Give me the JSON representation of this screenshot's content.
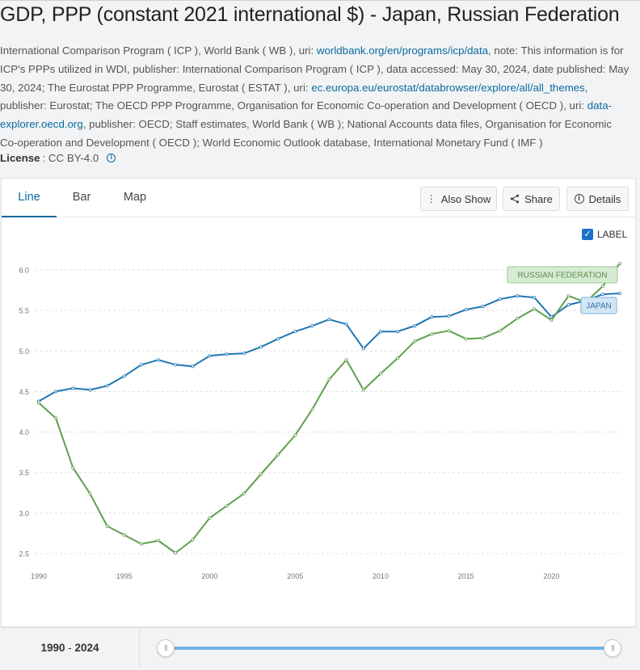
{
  "page": {
    "title": "GDP, PPP (constant 2021 international $) - Japan, Russian Federation",
    "source": {
      "parts": [
        {
          "text": "International Comparison Program ( ICP ), World Bank ( WB ), uri: "
        },
        {
          "text": "worldbank.org/en/programs/icp/data",
          "link": true
        },
        {
          "text": ", note: This information is for ICP's PPPs utilized in WDI, publisher: International Comparison Program ( ICP ), data accessed: May 30, 2024, date published: May 30, 2024; The Eurostat PPP Programme, Eurostat ( ESTAT ), uri: "
        },
        {
          "text": "ec.europa.eu/eurostat/databrowser/explore/all/all_themes",
          "link": true
        },
        {
          "text": ", publisher: Eurostat; The OECD PPP Programme, Organisation for Economic Co-operation and Development ( OECD ), uri: "
        },
        {
          "text": "data-explorer.oecd.org",
          "link": true
        },
        {
          "text": ", publisher: OECD; Staff estimates, World Bank ( WB ); National Accounts data files, Organisation for Economic Co-operation and Development ( OECD ); World Economic Outlook database, International Monetary Fund ( IMF )"
        }
      ]
    },
    "license_label": "License",
    "license_value": ": CC BY-4.0"
  },
  "tabs": [
    {
      "label": "Line",
      "active": true
    },
    {
      "label": "Bar",
      "active": false
    },
    {
      "label": "Map",
      "active": false
    }
  ],
  "toolbar": {
    "also_show": "Also Show",
    "share": "Share",
    "details": "Details"
  },
  "label_toggle": {
    "label": "LABEL",
    "checked": true
  },
  "range": {
    "start": "1990",
    "separator": " - ",
    "end": "2024"
  },
  "chart_data": {
    "type": "line",
    "x": [
      1990,
      1991,
      1992,
      1993,
      1994,
      1995,
      1996,
      1997,
      1998,
      1999,
      2000,
      2001,
      2002,
      2003,
      2004,
      2005,
      2006,
      2007,
      2008,
      2009,
      2010,
      2011,
      2012,
      2013,
      2014,
      2015,
      2016,
      2017,
      2018,
      2019,
      2020,
      2021,
      2022,
      2023,
      2024
    ],
    "xticks": [
      1990,
      1995,
      2000,
      2005,
      2010,
      2015,
      2020
    ],
    "yticks": [
      2.5,
      3.0,
      3.5,
      4.0,
      4.5,
      5.0,
      5.5,
      6.0
    ],
    "ytick_labels": [
      "2.5",
      "3.0",
      "3.5",
      "4.0",
      "4.5",
      "5.0",
      "5.5",
      "6.0"
    ],
    "ylim": [
      2.5,
      6.0
    ],
    "xlim": [
      1990,
      2024
    ],
    "grid": "horizontal dashed",
    "series": [
      {
        "name": "JAPAN",
        "color": "#1f77b4",
        "values": [
          4.38,
          4.5,
          4.54,
          4.52,
          4.57,
          4.69,
          4.83,
          4.89,
          4.83,
          4.81,
          4.94,
          4.96,
          4.97,
          5.05,
          5.15,
          5.24,
          5.31,
          5.39,
          5.33,
          5.03,
          5.24,
          5.24,
          5.31,
          5.42,
          5.43,
          5.51,
          5.55,
          5.64,
          5.68,
          5.66,
          5.42,
          5.57,
          5.62,
          5.7,
          5.71
        ]
      },
      {
        "name": "RUSSIAN FEDERATION",
        "color": "#5fa04e",
        "values": [
          4.36,
          4.17,
          3.56,
          3.24,
          2.84,
          2.73,
          2.62,
          2.66,
          2.51,
          2.67,
          2.94,
          3.09,
          3.24,
          3.48,
          3.72,
          3.96,
          4.28,
          4.65,
          4.89,
          4.52,
          4.72,
          4.91,
          5.12,
          5.21,
          5.25,
          5.15,
          5.16,
          5.25,
          5.4,
          5.52,
          5.38,
          5.68,
          5.6,
          5.8,
          6.08
        ]
      }
    ]
  }
}
